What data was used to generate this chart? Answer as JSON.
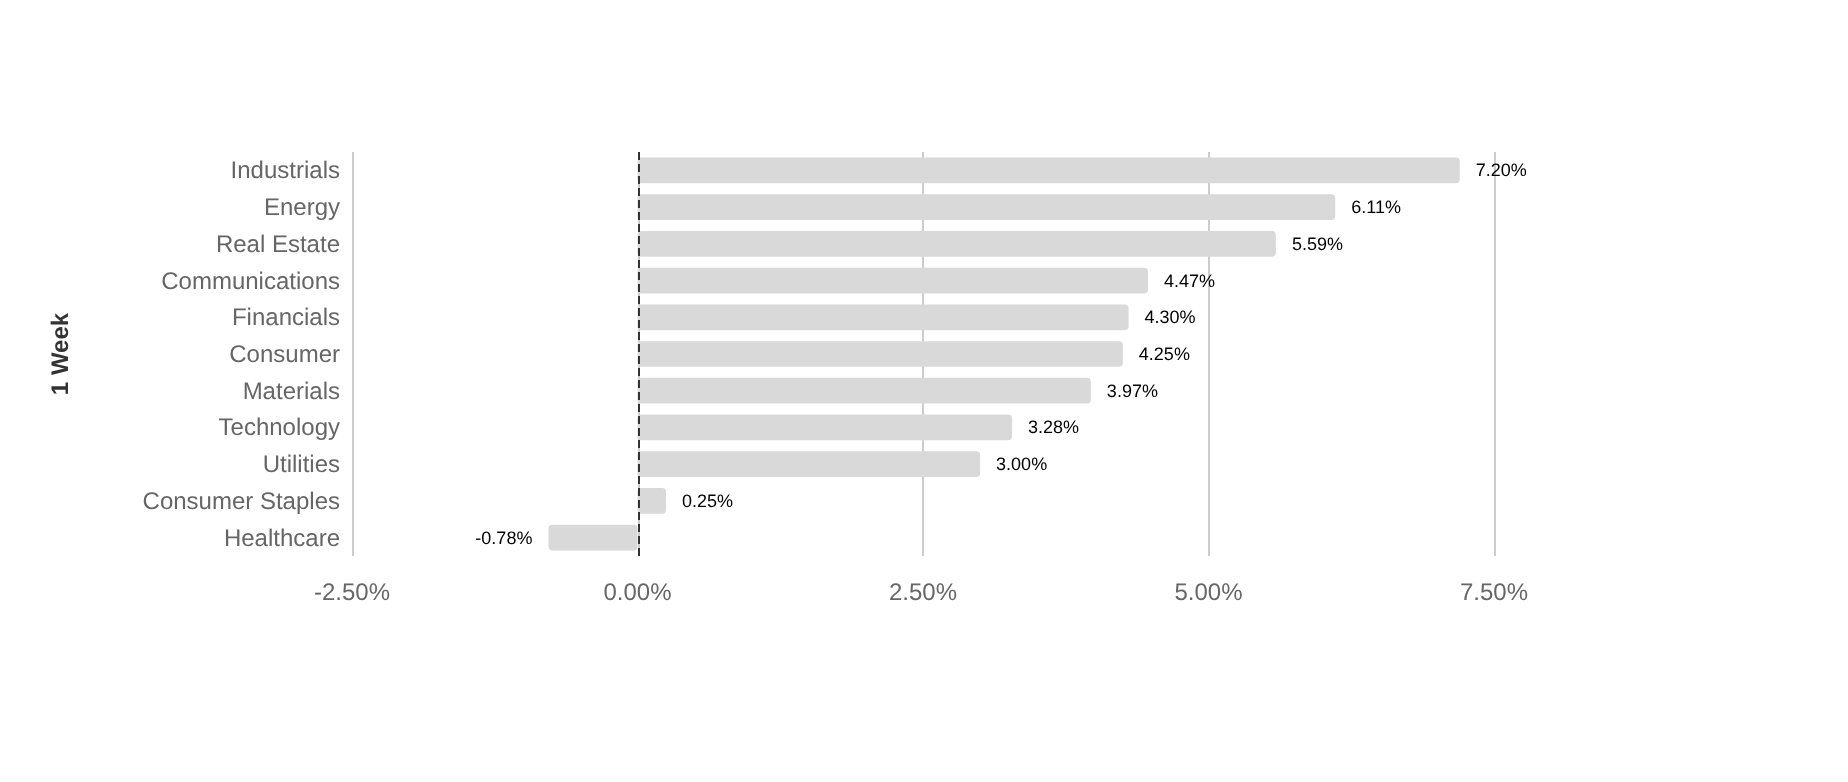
{
  "chart_data": {
    "type": "bar",
    "orientation": "horizontal",
    "ylabel": "1 Week",
    "categories": [
      "Industrials",
      "Energy",
      "Real Estate",
      "Communications",
      "Financials",
      "Consumer",
      "Materials",
      "Technology",
      "Utilities",
      "Consumer Staples",
      "Healthcare"
    ],
    "values": [
      7.2,
      6.11,
      5.59,
      4.47,
      4.3,
      4.25,
      3.97,
      3.28,
      3.0,
      0.25,
      -0.78
    ],
    "value_labels": [
      "7.20%",
      "6.11%",
      "5.59%",
      "4.47%",
      "4.30%",
      "4.25%",
      "3.97%",
      "3.28%",
      "3.00%",
      "0.25%",
      "-0.78%"
    ],
    "color": "#d9d9d9",
    "xlim": [
      -2.5,
      7.5
    ],
    "xticks": [
      {
        "value": -2.5,
        "label": "-2.50%"
      },
      {
        "value": 0,
        "label": "0.00%"
      },
      {
        "value": 2.5,
        "label": "2.50%"
      },
      {
        "value": 5,
        "label": "5.00%"
      },
      {
        "value": 7.5,
        "label": "7.50%"
      }
    ],
    "grid": "x",
    "ref_lines": [
      {
        "axis": "x",
        "value": 0,
        "color": "#333333",
        "line_style": "dashed"
      }
    ]
  }
}
